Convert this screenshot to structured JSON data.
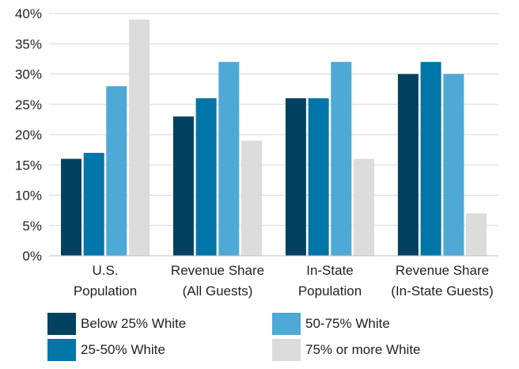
{
  "chart_data": {
    "type": "bar",
    "title": "",
    "xlabel": "",
    "ylabel": "",
    "ylim": [
      0,
      40
    ],
    "y_ticks": [
      0,
      5,
      10,
      15,
      20,
      25,
      30,
      35,
      40
    ],
    "y_tick_labels": [
      "0%",
      "5%",
      "10%",
      "15%",
      "20%",
      "25%",
      "30%",
      "35%",
      "40%"
    ],
    "grid": "horizontal",
    "legend_position": "bottom",
    "categories": [
      [
        "U.S.",
        "Population"
      ],
      [
        "Revenue Share",
        "(All Guests)"
      ],
      [
        "In-State",
        "Population"
      ],
      [
        "Revenue Share",
        "(In-State Guests)"
      ]
    ],
    "series": [
      {
        "name": "Below 25% White",
        "color": "#00425f",
        "values": [
          16,
          23,
          26,
          30
        ]
      },
      {
        "name": "25-50% White",
        "color": "#0076a8",
        "values": [
          17,
          26,
          26,
          32
        ]
      },
      {
        "name": "50-75% White",
        "color": "#4ea9d6",
        "values": [
          28,
          32,
          32,
          30
        ]
      },
      {
        "name": "75% or more White",
        "color": "#dcdcdc",
        "values": [
          39,
          19,
          16,
          7
        ]
      }
    ]
  }
}
